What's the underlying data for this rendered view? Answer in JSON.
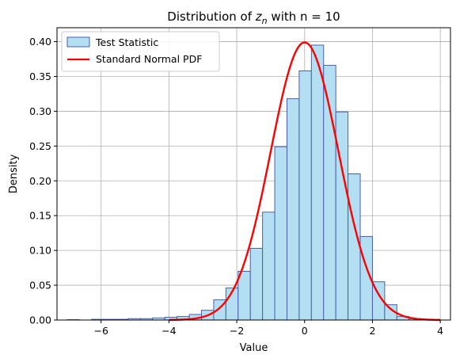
{
  "chart_data": {
    "type": "bar",
    "title_prefix": "Distribution of ",
    "title_var": "z",
    "title_sub": "n",
    "title_suffix": " with n = 10",
    "xlabel": "Value",
    "ylabel": "Density",
    "xlim": [
      -7.3,
      4.3
    ],
    "ylim": [
      0,
      0.42
    ],
    "xticks": [
      -6,
      -4,
      -2,
      0,
      2,
      4
    ],
    "xtick_labels": [
      "−6",
      "−4",
      "−2",
      "0",
      "2",
      "4"
    ],
    "yticks": [
      0,
      0.05,
      0.1,
      0.15,
      0.2,
      0.25,
      0.3,
      0.35,
      0.4
    ],
    "ytick_labels": [
      "0.00",
      "0.05",
      "0.10",
      "0.15",
      "0.20",
      "0.25",
      "0.30",
      "0.35",
      "0.40"
    ],
    "grid": true,
    "legend_position": "top-left",
    "bin_width": 0.36,
    "histogram": {
      "name": "Test Statistic",
      "fill": "#b4dff2",
      "edge": "#4a5fb0",
      "bins": [
        {
          "x0": -7.0,
          "density": 0.0005
        },
        {
          "x0": -6.64,
          "density": 0.0
        },
        {
          "x0": -6.28,
          "density": 0.001
        },
        {
          "x0": -5.92,
          "density": 0.001
        },
        {
          "x0": -5.56,
          "density": 0.001
        },
        {
          "x0": -5.2,
          "density": 0.002
        },
        {
          "x0": -4.84,
          "density": 0.002
        },
        {
          "x0": -4.48,
          "density": 0.003
        },
        {
          "x0": -4.12,
          "density": 0.004
        },
        {
          "x0": -3.76,
          "density": 0.005
        },
        {
          "x0": -3.4,
          "density": 0.008
        },
        {
          "x0": -3.04,
          "density": 0.014
        },
        {
          "x0": -2.68,
          "density": 0.029
        },
        {
          "x0": -2.32,
          "density": 0.046
        },
        {
          "x0": -1.96,
          "density": 0.07
        },
        {
          "x0": -1.6,
          "density": 0.103
        },
        {
          "x0": -1.24,
          "density": 0.155
        },
        {
          "x0": -0.88,
          "density": 0.249
        },
        {
          "x0": -0.52,
          "density": 0.318
        },
        {
          "x0": -0.16,
          "density": 0.358
        },
        {
          "x0": 0.2,
          "density": 0.395
        },
        {
          "x0": 0.56,
          "density": 0.366
        },
        {
          "x0": 0.92,
          "density": 0.299
        },
        {
          "x0": 1.28,
          "density": 0.21
        },
        {
          "x0": 1.64,
          "density": 0.12
        },
        {
          "x0": 2.0,
          "density": 0.055
        },
        {
          "x0": 2.36,
          "density": 0.022
        },
        {
          "x0": 2.72,
          "density": 0.005
        },
        {
          "x0": 3.08,
          "density": 0.002
        }
      ]
    },
    "pdf_curve": {
      "name": "Standard Normal PDF",
      "color": "#ff0000",
      "x_range": [
        -4,
        4
      ],
      "mean": 0,
      "std": 1
    }
  }
}
